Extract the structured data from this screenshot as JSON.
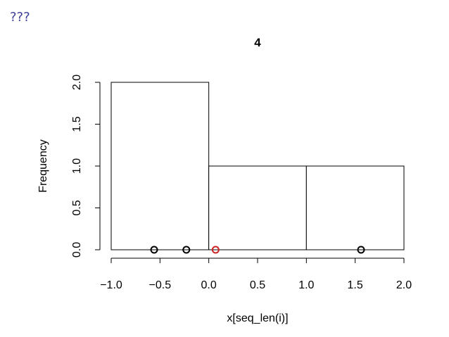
{
  "corner_label": "???",
  "chart_data": {
    "type": "bar",
    "title": "4",
    "xlabel": "x[seq_len(i)]",
    "ylabel": "Frequency",
    "bins": [
      {
        "from": -1.0,
        "to": 0.0,
        "count": 2
      },
      {
        "from": 0.0,
        "to": 1.0,
        "count": 1
      },
      {
        "from": 1.0,
        "to": 2.0,
        "count": 1
      }
    ],
    "xlim": [
      -1.0,
      2.0
    ],
    "ylim": [
      0,
      2.0
    ],
    "x_ticks": [
      {
        "value": -1.0,
        "label": "−1.0"
      },
      {
        "value": -0.5,
        "label": "−0.5"
      },
      {
        "value": 0.0,
        "label": "0.0"
      },
      {
        "value": 0.5,
        "label": "0.5"
      },
      {
        "value": 1.0,
        "label": "1.0"
      },
      {
        "value": 1.5,
        "label": "1.5"
      },
      {
        "value": 2.0,
        "label": "2.0"
      }
    ],
    "y_ticks": [
      {
        "value": 0.0,
        "label": "0.0"
      },
      {
        "value": 0.5,
        "label": "0.5"
      },
      {
        "value": 1.0,
        "label": "1.0"
      },
      {
        "value": 1.5,
        "label": "1.5"
      },
      {
        "value": 2.0,
        "label": "2.0"
      }
    ],
    "points": [
      {
        "x": -0.56,
        "highlight": false
      },
      {
        "x": -0.23,
        "highlight": false
      },
      {
        "x": 0.07,
        "highlight": true
      },
      {
        "x": 1.56,
        "highlight": false
      }
    ],
    "colors": {
      "point": "#000000",
      "highlight": "#cc2222",
      "bar_fill": "#ffffff",
      "bar_stroke": "#000000"
    },
    "grid": false
  }
}
